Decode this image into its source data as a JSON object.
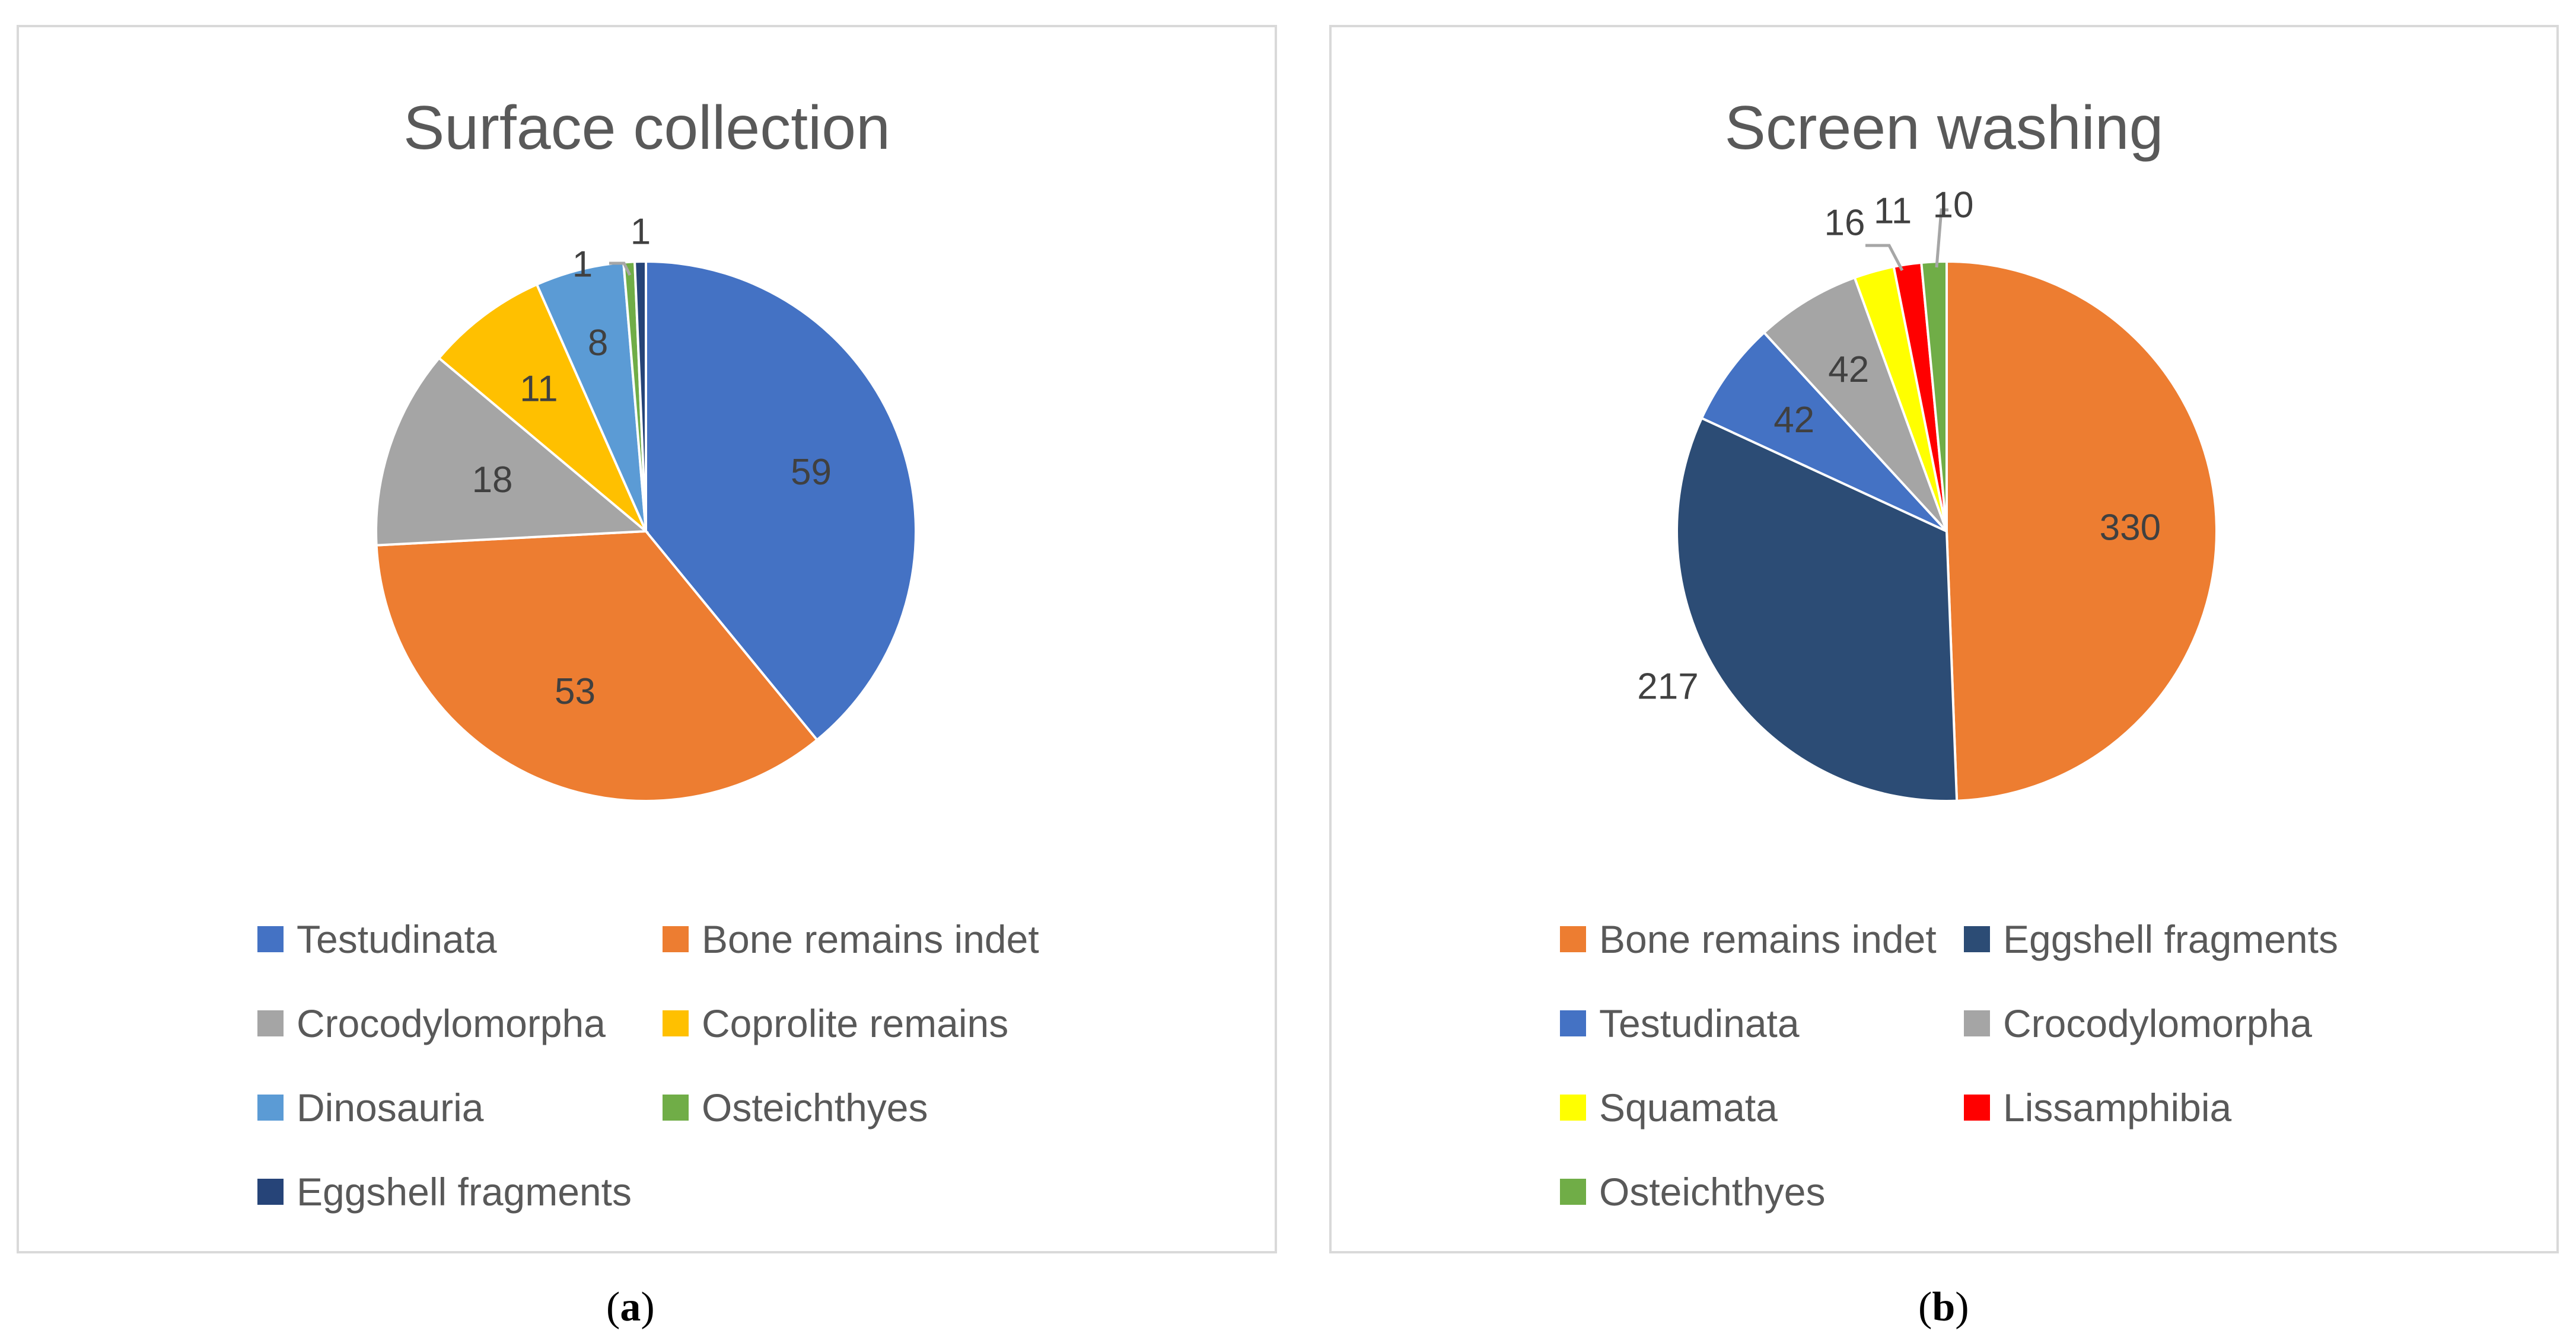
{
  "chart_data": [
    {
      "type": "pie",
      "title": "Surface collection",
      "slices": [
        {
          "label": "Testudinata",
          "value": 59,
          "color": "#4472C4"
        },
        {
          "label": "Bone remains indet",
          "value": 53,
          "color": "#ED7D31"
        },
        {
          "label": "Crocodylomorpha",
          "value": 18,
          "color": "#A5A5A5"
        },
        {
          "label": "Coprolite remains",
          "value": 11,
          "color": "#FFC000"
        },
        {
          "label": "Dinosauria",
          "value": 8,
          "color": "#5B9BD5"
        },
        {
          "label": "Osteichthyes",
          "value": 1,
          "color": "#70AD47"
        },
        {
          "label": "Eggshell fragments",
          "value": 1,
          "color": "#264478"
        }
      ],
      "legend_position": "bottom"
    },
    {
      "type": "pie",
      "title": "Screen washing",
      "slices": [
        {
          "label": "Bone remains indet",
          "value": 330,
          "color": "#ED7D31"
        },
        {
          "label": "Eggshell fragments",
          "value": 217,
          "color": "#2C4C75"
        },
        {
          "label": "Testudinata",
          "value": 42,
          "color": "#4472C4"
        },
        {
          "label": "Crocodylomorpha",
          "value": 42,
          "color": "#A5A5A5"
        },
        {
          "label": "Squamata",
          "value": 16,
          "color": "#FFFF00"
        },
        {
          "label": "Lissamphibia",
          "value": 11,
          "color": "#FF0000"
        },
        {
          "label": "Osteichthyes",
          "value": 10,
          "color": "#70AD47"
        }
      ],
      "legend_position": "bottom"
    }
  ],
  "captions": {
    "a": {
      "open": "(",
      "letter": "a",
      "close": ")"
    },
    "b": {
      "open": "(",
      "letter": "b",
      "close": ")"
    }
  }
}
